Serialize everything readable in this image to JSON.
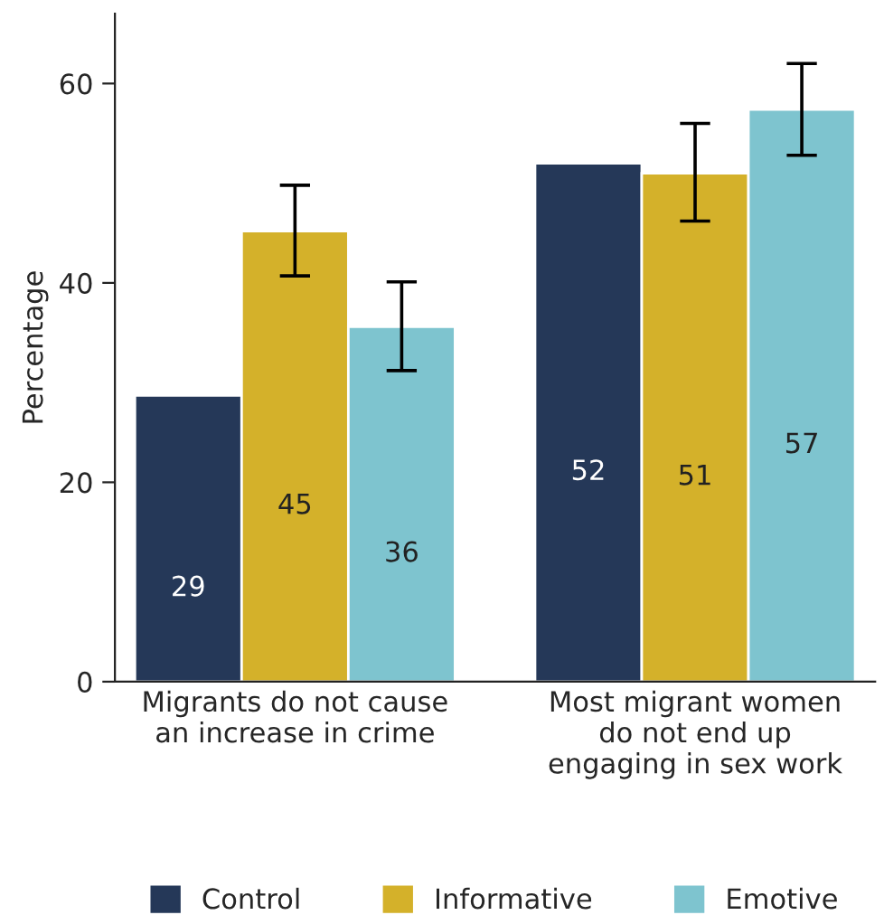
{
  "chart_data": {
    "type": "bar",
    "ylabel": "Percentage",
    "categories": [
      "Migrants do not cause\nan increase in crime",
      "Most migrant women\ndo not end up\nengaging in sex work"
    ],
    "series": [
      {
        "name": "Control",
        "color": "#253858",
        "values": [
          28.7,
          52.0
        ],
        "value_labels": [
          "29",
          "52"
        ],
        "errors": [
          null,
          null
        ]
      },
      {
        "name": "Informative",
        "color": "#d4b12a",
        "values": [
          45.2,
          51.0
        ],
        "value_labels": [
          "45",
          "51"
        ],
        "errors": [
          [
            40.7,
            49.8
          ],
          [
            46.2,
            56.0
          ]
        ]
      },
      {
        "name": "Emotive",
        "color": "#7ec4cf",
        "values": [
          35.6,
          57.4
        ],
        "value_labels": [
          "36",
          "57"
        ],
        "errors": [
          [
            31.2,
            40.1
          ],
          [
            52.8,
            62.0
          ]
        ]
      }
    ],
    "ylim": [
      0,
      67
    ],
    "yticks": [
      0,
      20,
      40,
      60
    ],
    "grid": false,
    "legend": "bottom"
  }
}
